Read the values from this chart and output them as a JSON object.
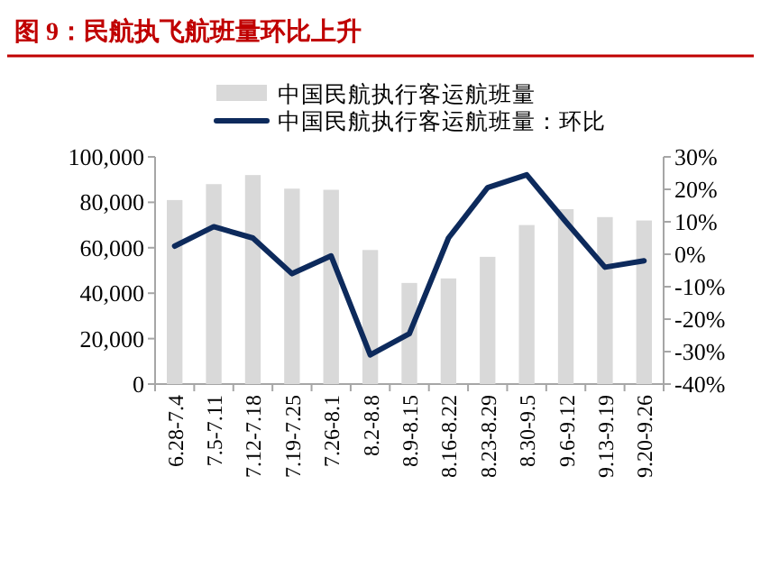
{
  "chart_data": {
    "type": "bar",
    "title": "图 9：民航执飞航班量环比上升",
    "categories": [
      "6.28-7.4",
      "7.5-7.11",
      "7.12-7.18",
      "7.19-7.25",
      "7.26-8.1",
      "8.2-8.8",
      "8.9-8.15",
      "8.16-8.22",
      "8.23-8.29",
      "8.30-9.5",
      "9.6-9.12",
      "9.13-9.19",
      "9.20-9.26"
    ],
    "series": [
      {
        "name": "中国民航执行客运航班量",
        "color": "#d9d9d9",
        "values": [
          81000,
          88000,
          92000,
          86000,
          85500,
          59000,
          44500,
          46500,
          56000,
          70000,
          77000,
          73500,
          72000
        ]
      },
      {
        "name": "中国民航执行客运航班量：环比",
        "type": "line",
        "axis": "y2",
        "color": "#0d2a5c",
        "values": [
          2.5,
          8.5,
          5,
          -6,
          -0.5,
          -31,
          -24.5,
          5,
          20.5,
          24.5,
          10,
          -4,
          -2
        ]
      }
    ],
    "ylim": [
      0,
      100000
    ],
    "yticks": [
      {
        "value": 0,
        "label": "0"
      },
      {
        "value": 20000,
        "label": "20,000"
      },
      {
        "value": 40000,
        "label": "40,000"
      },
      {
        "value": 60000,
        "label": "60,000"
      },
      {
        "value": 80000,
        "label": "80,000"
      },
      {
        "value": 100000,
        "label": "100,000"
      }
    ],
    "y2lim": [
      -40,
      30
    ],
    "y2ticks": [
      {
        "value": -40,
        "label": "-40%"
      },
      {
        "value": -30,
        "label": "-30%"
      },
      {
        "value": -20,
        "label": "-20%"
      },
      {
        "value": -10,
        "label": "-10%"
      },
      {
        "value": 0,
        "label": "0%"
      },
      {
        "value": 10,
        "label": "10%"
      },
      {
        "value": 20,
        "label": "20%"
      },
      {
        "value": 30,
        "label": "30%"
      }
    ],
    "legend": "top",
    "grid": false,
    "marker": "none",
    "line_style": "solid"
  }
}
